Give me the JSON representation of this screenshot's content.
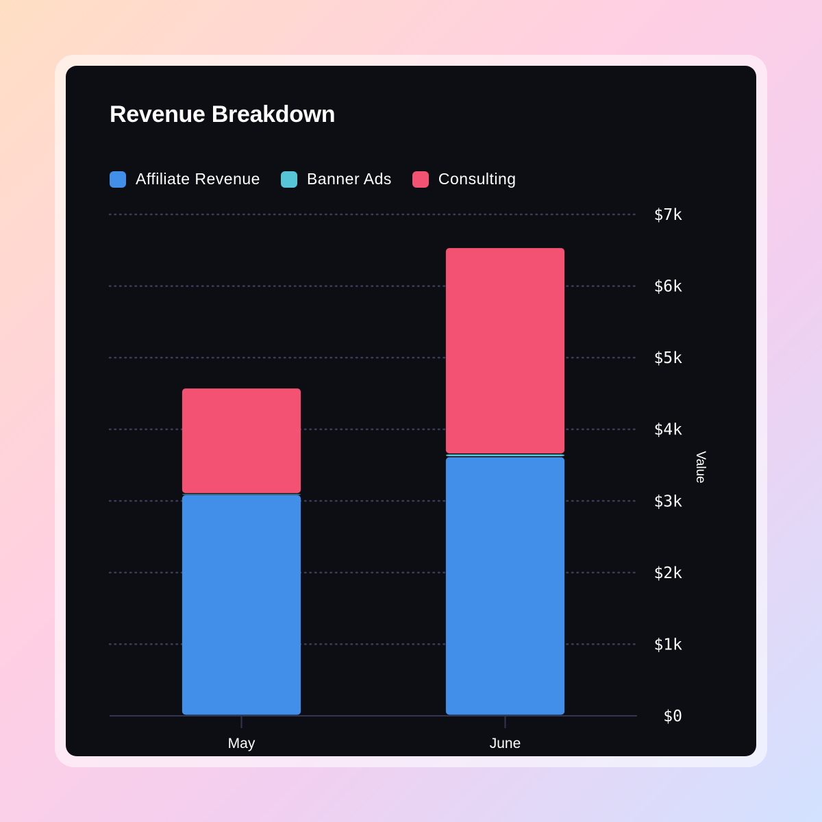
{
  "chart_data": {
    "type": "bar",
    "stacked": true,
    "title": "Revenue Breakdown",
    "categories": [
      "May",
      "June"
    ],
    "series": [
      {
        "name": "Affiliate Revenue",
        "color": "#418fe9",
        "values": [
          3080,
          3610
        ]
      },
      {
        "name": "Banner Ads",
        "color": "#57c5d8",
        "values": [
          15,
          40
        ]
      },
      {
        "name": "Consulting",
        "color": "#f35273",
        "values": [
          1475,
          2880
        ]
      }
    ],
    "xlabel": "",
    "ylabel": "Value",
    "ylim": [
      0,
      7000
    ],
    "yticks": [
      0,
      1000,
      2000,
      3000,
      4000,
      5000,
      6000,
      7000
    ],
    "ytick_labels": [
      "$0",
      "$1k",
      "$2k",
      "$3k",
      "$4k",
      "$5k",
      "$6k",
      "$7k"
    ],
    "grid": true,
    "legend_position": "top-left",
    "y_axis_side": "right"
  }
}
